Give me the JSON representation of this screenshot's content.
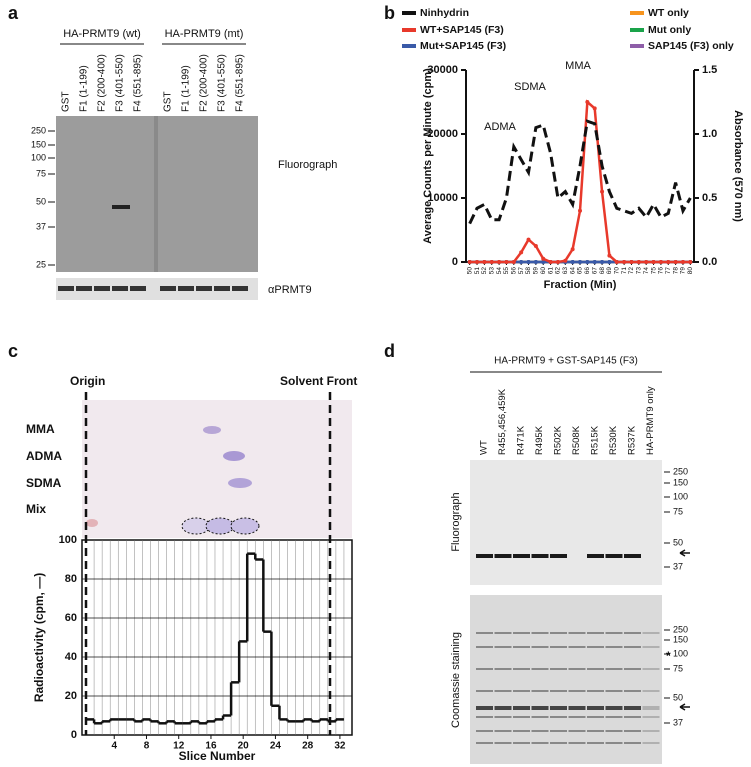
{
  "panel_labels": [
    "a",
    "b",
    "c",
    "d"
  ],
  "panel_a": {
    "groups": [
      "HA-PRMT9 (wt)",
      "HA-PRMT9 (mt)"
    ],
    "lanes": [
      "GST",
      "F1 (1-199)",
      "F2 (200-400)",
      "F3 (401-550)",
      "F4 (551-895)",
      "GST",
      "F1 (1-199)",
      "F2 (200-400)",
      "F3 (401-550)",
      "F4 (551-895)"
    ],
    "markers": [
      250,
      150,
      100,
      75,
      50,
      37,
      25
    ],
    "blot_label": "Fluorograph",
    "strip_label": "αPRMT9"
  },
  "chart_data": [
    {
      "type": "line",
      "x_label": "Fraction (Min)",
      "y_label": "Average Counts per Minute (cpm)",
      "y2_label": "Absorbance (570 nm)",
      "categories": [
        "50",
        "51",
        "52",
        "53",
        "54",
        "55",
        "56",
        "57",
        "58",
        "59",
        "60",
        "61",
        "62",
        "63",
        "64",
        "65",
        "66",
        "67",
        "68",
        "69",
        "70",
        "71",
        "72",
        "73",
        "74",
        "75",
        "76",
        "77",
        "78",
        "79",
        "80"
      ],
      "ylim": [
        0,
        30000
      ],
      "yticks": [
        0,
        10000,
        20000,
        30000
      ],
      "y2lim": [
        0,
        1.5
      ],
      "y2ticks": [
        {
          "value": 0,
          "label": "0.0"
        },
        {
          "value": 0.5,
          "label": "0.5"
        },
        {
          "value": 1,
          "label": "1.0"
        },
        {
          "value": 1.5,
          "label": "1.5"
        }
      ],
      "annotations": [
        "ADMA",
        "SDMA",
        "MMA"
      ],
      "series": [
        {
          "name": "Ninhydrin",
          "color": "#111111",
          "axis": "y2",
          "values": [
            0.3,
            0.42,
            0.45,
            0.33,
            0.33,
            0.5,
            0.9,
            0.8,
            0.7,
            1.05,
            1.07,
            0.85,
            0.5,
            0.55,
            0.45,
            0.75,
            1.1,
            1.08,
            0.75,
            0.55,
            0.42,
            0.4,
            0.38,
            0.42,
            0.35,
            0.45,
            0.35,
            0.38,
            0.62,
            0.4,
            0.5
          ]
        },
        {
          "name": "WT only",
          "color": "#f7941d",
          "values": [
            0,
            0,
            0,
            0,
            0,
            0,
            0,
            0,
            0,
            0,
            0,
            0,
            0,
            0,
            0,
            0,
            0,
            0,
            0,
            0,
            0,
            0,
            0,
            0,
            0,
            0,
            0,
            0,
            0,
            0,
            0
          ]
        },
        {
          "name": "WT+SAP145 (F3)",
          "color": "#e8392b",
          "values": [
            0,
            0,
            0,
            0,
            0,
            0,
            0,
            1500,
            3500,
            2500,
            500,
            0,
            0,
            200,
            2000,
            8000,
            25000,
            24000,
            11000,
            1000,
            0,
            0,
            0,
            0,
            0,
            0,
            0,
            0,
            0,
            0,
            0
          ]
        },
        {
          "name": "Mut only",
          "color": "#1aa34a",
          "values": [
            0,
            0,
            0,
            0,
            0,
            0,
            0,
            0,
            0,
            0,
            0,
            0,
            0,
            0,
            0,
            0,
            0,
            0,
            0,
            0,
            0,
            0,
            0,
            0,
            0,
            0,
            0,
            0,
            0,
            0,
            0
          ]
        },
        {
          "name": "Mut+SAP145 (F3)",
          "color": "#3a5aa8",
          "values": [
            0,
            0,
            0,
            0,
            0,
            0,
            0,
            0,
            0,
            0,
            0,
            0,
            0,
            0,
            0,
            0,
            0,
            0,
            0,
            0,
            0,
            0,
            0,
            0,
            0,
            0,
            0,
            0,
            0,
            0,
            0
          ]
        },
        {
          "name": "SAP145 (F3) only",
          "color": "#8e5ea8",
          "values": [
            0,
            0,
            0,
            0,
            0,
            0,
            0,
            0,
            0,
            0,
            0,
            0,
            0,
            0,
            0,
            0,
            0,
            0,
            0,
            0,
            0,
            0,
            0,
            0,
            0,
            0,
            0,
            0,
            0,
            0,
            0
          ]
        }
      ]
    },
    {
      "type": "step",
      "x_label": "Slice Number",
      "y_label": "Radioactivity (cpm, —)",
      "x": [
        1,
        2,
        3,
        4,
        5,
        6,
        7,
        8,
        9,
        10,
        11,
        12,
        13,
        14,
        15,
        16,
        17,
        18,
        19,
        20,
        21,
        22,
        23,
        24,
        25,
        26,
        27,
        28,
        29,
        30,
        31,
        32
      ],
      "values": [
        8,
        6,
        7,
        8,
        8,
        8,
        7,
        8,
        7,
        6,
        7,
        6,
        6,
        7,
        6,
        7,
        8,
        10,
        27,
        48,
        93,
        90,
        53,
        15,
        8,
        7,
        7,
        8,
        7,
        8,
        7,
        8
      ],
      "xlim": [
        0,
        33.5
      ],
      "xticks": [
        4,
        8,
        12,
        16,
        20,
        24,
        28,
        32
      ],
      "ylim": [
        0,
        100
      ],
      "yticks": [
        0,
        20,
        40,
        60,
        80,
        100
      ],
      "grid": true,
      "annotations": [
        "Origin",
        "Solvent Front"
      ],
      "lane_labels": [
        "MMA",
        "ADMA",
        "SDMA",
        "Mix"
      ]
    }
  ],
  "panel_d": {
    "header": "HA-PRMT9 + GST-SAP145 (F3)",
    "lanes": [
      "WT",
      "R455,456,459K",
      "R471K",
      "R495K",
      "R502K",
      "R508K",
      "R515K",
      "R530K",
      "R537K",
      "HA-PRMT9 only"
    ],
    "blot1_label": "Fluorograph",
    "blot1_markers": [
      250,
      150,
      100,
      75,
      50,
      37
    ],
    "blot2_label": "Coomassie staining",
    "blot2_markers": [
      250,
      150,
      100,
      75,
      50,
      37
    ],
    "asterisk": "*"
  }
}
